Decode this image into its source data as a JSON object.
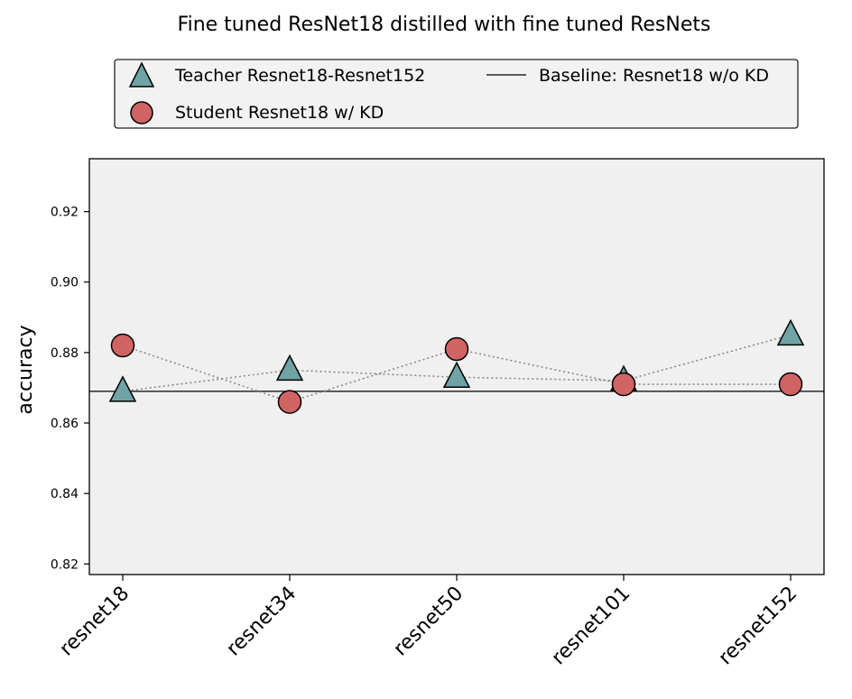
{
  "chart_data": {
    "type": "scatter",
    "title": "Fine tuned ResNet18 distilled with fine tuned ResNets",
    "xlabel": "",
    "ylabel": "accuracy",
    "categories": [
      "resnet18",
      "resnet34",
      "resnet50",
      "resnet101",
      "resnet152"
    ],
    "ylim": [
      0.817,
      0.935
    ],
    "yticks": [
      0.82,
      0.84,
      0.86,
      0.88,
      0.9,
      0.92
    ],
    "ytick_labels": [
      "0.82",
      "0.84",
      "0.86",
      "0.88",
      "0.90",
      "0.92"
    ],
    "grid": false,
    "legend_position": "top",
    "series": [
      {
        "name": "Teacher Resnet18-Resnet152",
        "marker": "triangle",
        "color": "#6fa3a5",
        "values": [
          0.869,
          0.875,
          0.873,
          0.872,
          0.885
        ]
      },
      {
        "name": "Student Resnet18 w/ KD",
        "marker": "circle",
        "color": "#d06464",
        "values": [
          0.882,
          0.866,
          0.881,
          0.871,
          0.871
        ]
      }
    ],
    "baseline": {
      "name": "Baseline: Resnet18 w/o KD",
      "value": 0.869,
      "color": "#000000"
    },
    "connector_color": "#888888",
    "plot_background": "#f0f0f0",
    "legend_background": "#f2f2f2"
  }
}
